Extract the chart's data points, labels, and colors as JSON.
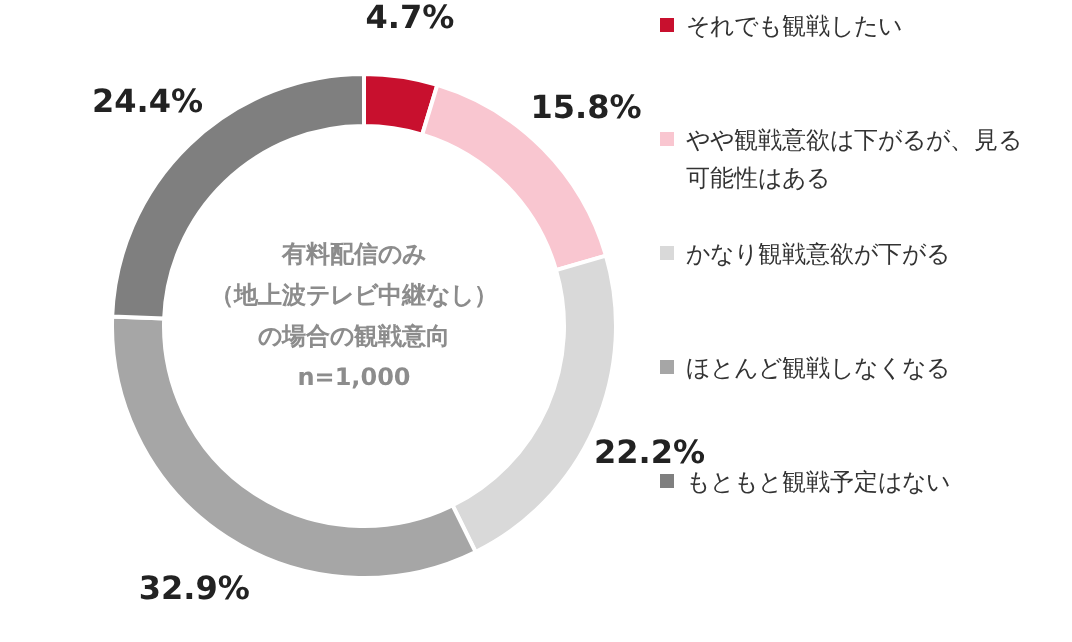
{
  "chart_data": {
    "type": "donut",
    "categories": [
      "それでも観戦したい",
      "やや観戦意欲は下がるが、見る可能性はある",
      "かなり観戦意欲が下がる",
      "ほとんど観戦しなくなる",
      "もともと観戦予定はない"
    ],
    "values": [
      4.7,
      15.8,
      22.2,
      32.9,
      24.4
    ],
    "colors": [
      "#c8102e",
      "#f9c6d0",
      "#d9d9d9",
      "#a6a6a6",
      "#7f7f7f"
    ],
    "value_labels": [
      "4.7%",
      "15.8%",
      "22.2%",
      "32.9%",
      "24.4%"
    ],
    "annotations": [
      "有料配信のみ",
      "（地上波テレビ中継なし）",
      "の場合の観戦意向",
      "n=1,000"
    ],
    "legend": "right"
  }
}
